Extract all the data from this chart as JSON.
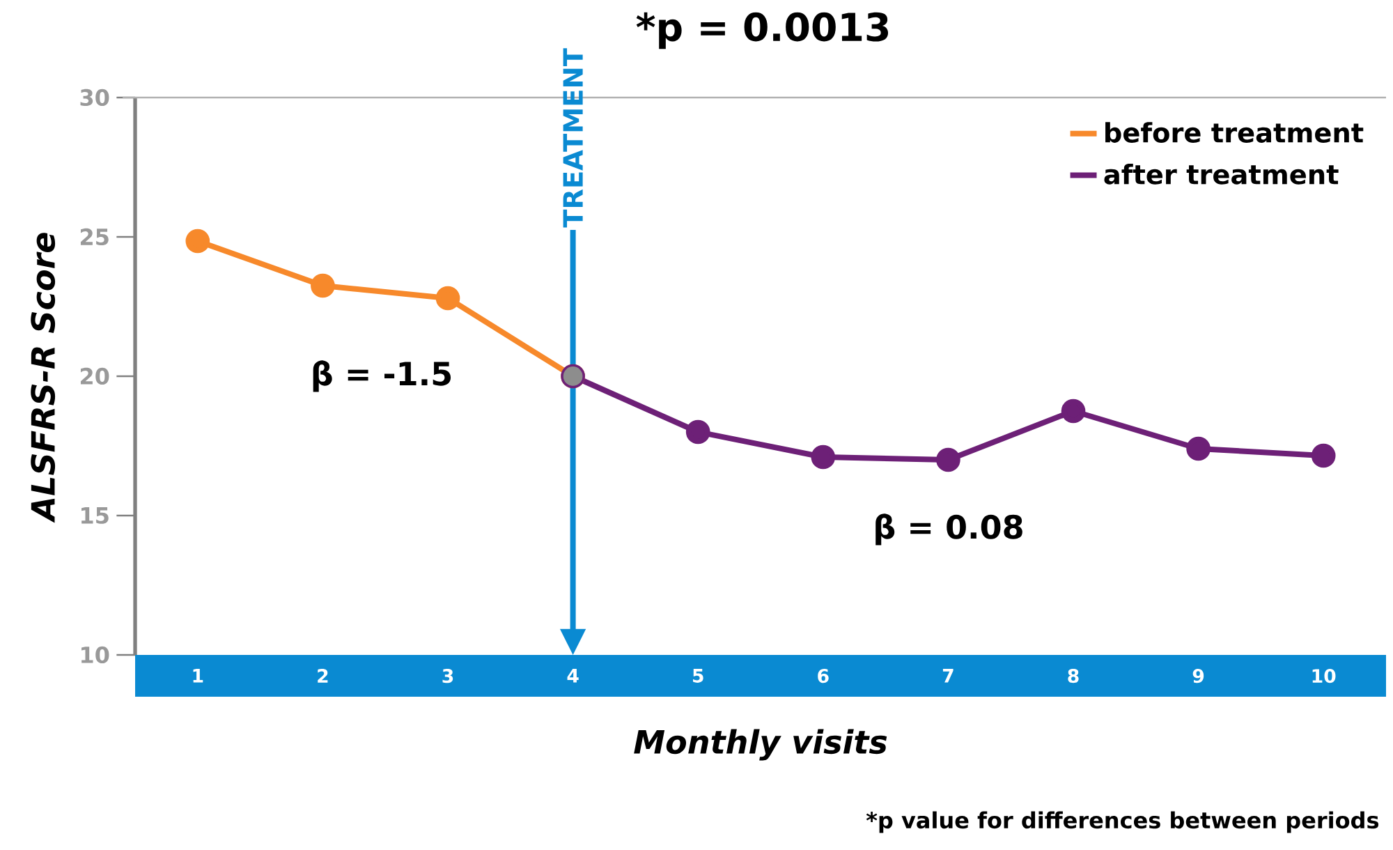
{
  "chart_data": {
    "type": "line",
    "xlabel": "Monthly visits",
    "ylabel": "ALSFRS-R Score",
    "xlim": [
      0.5,
      10.5
    ],
    "xticks": [
      1,
      2,
      3,
      4,
      5,
      6,
      7,
      8,
      9,
      10
    ],
    "ylim": [
      10,
      30
    ],
    "yticks": [
      10,
      15,
      20,
      25,
      30
    ],
    "marker": "circle",
    "legend": "top right",
    "series": [
      {
        "name": "before treatment",
        "color": "#f7892b",
        "x": [
          1,
          2,
          3,
          4
        ],
        "values": [
          24.85,
          23.25,
          22.8,
          20
        ]
      },
      {
        "name": "after treatment",
        "color": "#6d2077",
        "x": [
          4,
          5,
          6,
          7,
          8,
          9,
          10
        ],
        "values": [
          20,
          18,
          17.1,
          17,
          18.75,
          17.4,
          17.15
        ]
      },
      {
        "type": "scatter",
        "color": "#8d8d8d",
        "x": [
          4
        ],
        "values": [
          20
        ]
      }
    ],
    "ref_lines": [
      {
        "axis": "x",
        "value": 4,
        "label": "TREATMENT",
        "color": "#0a8ad2"
      }
    ],
    "annotations": [
      "*p = 0.0013",
      "β = -1.5",
      "β = 0.08",
      "*p value for differences between periods"
    ]
  }
}
